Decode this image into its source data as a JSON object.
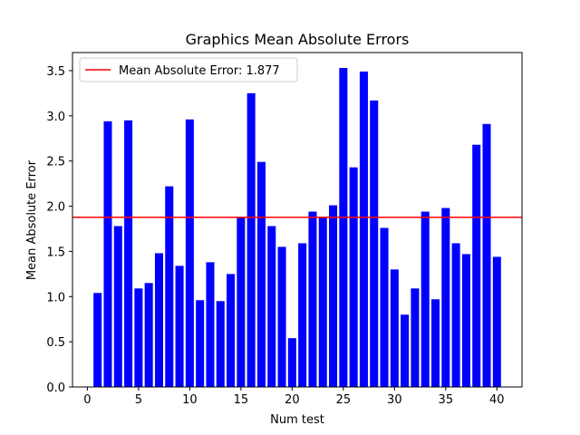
{
  "chart_data": {
    "type": "bar",
    "title": "Graphics Mean Absolute Errors",
    "xlabel": "Num test",
    "ylabel": "Mean Absolute Error",
    "xlim": [
      -1.45,
      42.45
    ],
    "ylim": [
      0,
      3.7
    ],
    "xticks": [
      0,
      5,
      10,
      15,
      20,
      25,
      30,
      35,
      40
    ],
    "xtick_labels": [
      "0",
      "5",
      "10",
      "15",
      "20",
      "25",
      "30",
      "35",
      "40"
    ],
    "yticks": [
      0.0,
      0.5,
      1.0,
      1.5,
      2.0,
      2.5,
      3.0,
      3.5
    ],
    "ytick_labels": [
      "0.0",
      "0.5",
      "1.0",
      "1.5",
      "2.0",
      "2.5",
      "3.0",
      "3.5"
    ],
    "grid": false,
    "legend_position": "upper-left",
    "bar_color": "#0000ff",
    "x": [
      1,
      2,
      3,
      4,
      5,
      6,
      7,
      8,
      9,
      10,
      11,
      12,
      13,
      14,
      15,
      16,
      17,
      18,
      19,
      20,
      21,
      22,
      23,
      24,
      25,
      26,
      27,
      28,
      29,
      30,
      31,
      32,
      33,
      34,
      35,
      36,
      37,
      38,
      39,
      40
    ],
    "values": [
      1.04,
      2.94,
      1.78,
      2.95,
      1.09,
      1.15,
      1.48,
      2.22,
      1.34,
      2.96,
      0.96,
      1.38,
      0.95,
      1.25,
      1.88,
      3.25,
      2.49,
      1.78,
      1.55,
      0.54,
      1.59,
      1.94,
      1.88,
      2.01,
      3.53,
      2.43,
      3.49,
      3.17,
      1.76,
      1.3,
      0.8,
      1.09,
      1.94,
      0.97,
      1.98,
      1.59,
      1.47,
      2.68,
      2.91,
      1.44
    ],
    "reference_line": {
      "value": 1.877,
      "color": "#ff0000",
      "label": "Mean Absolute Error: 1.877"
    }
  }
}
